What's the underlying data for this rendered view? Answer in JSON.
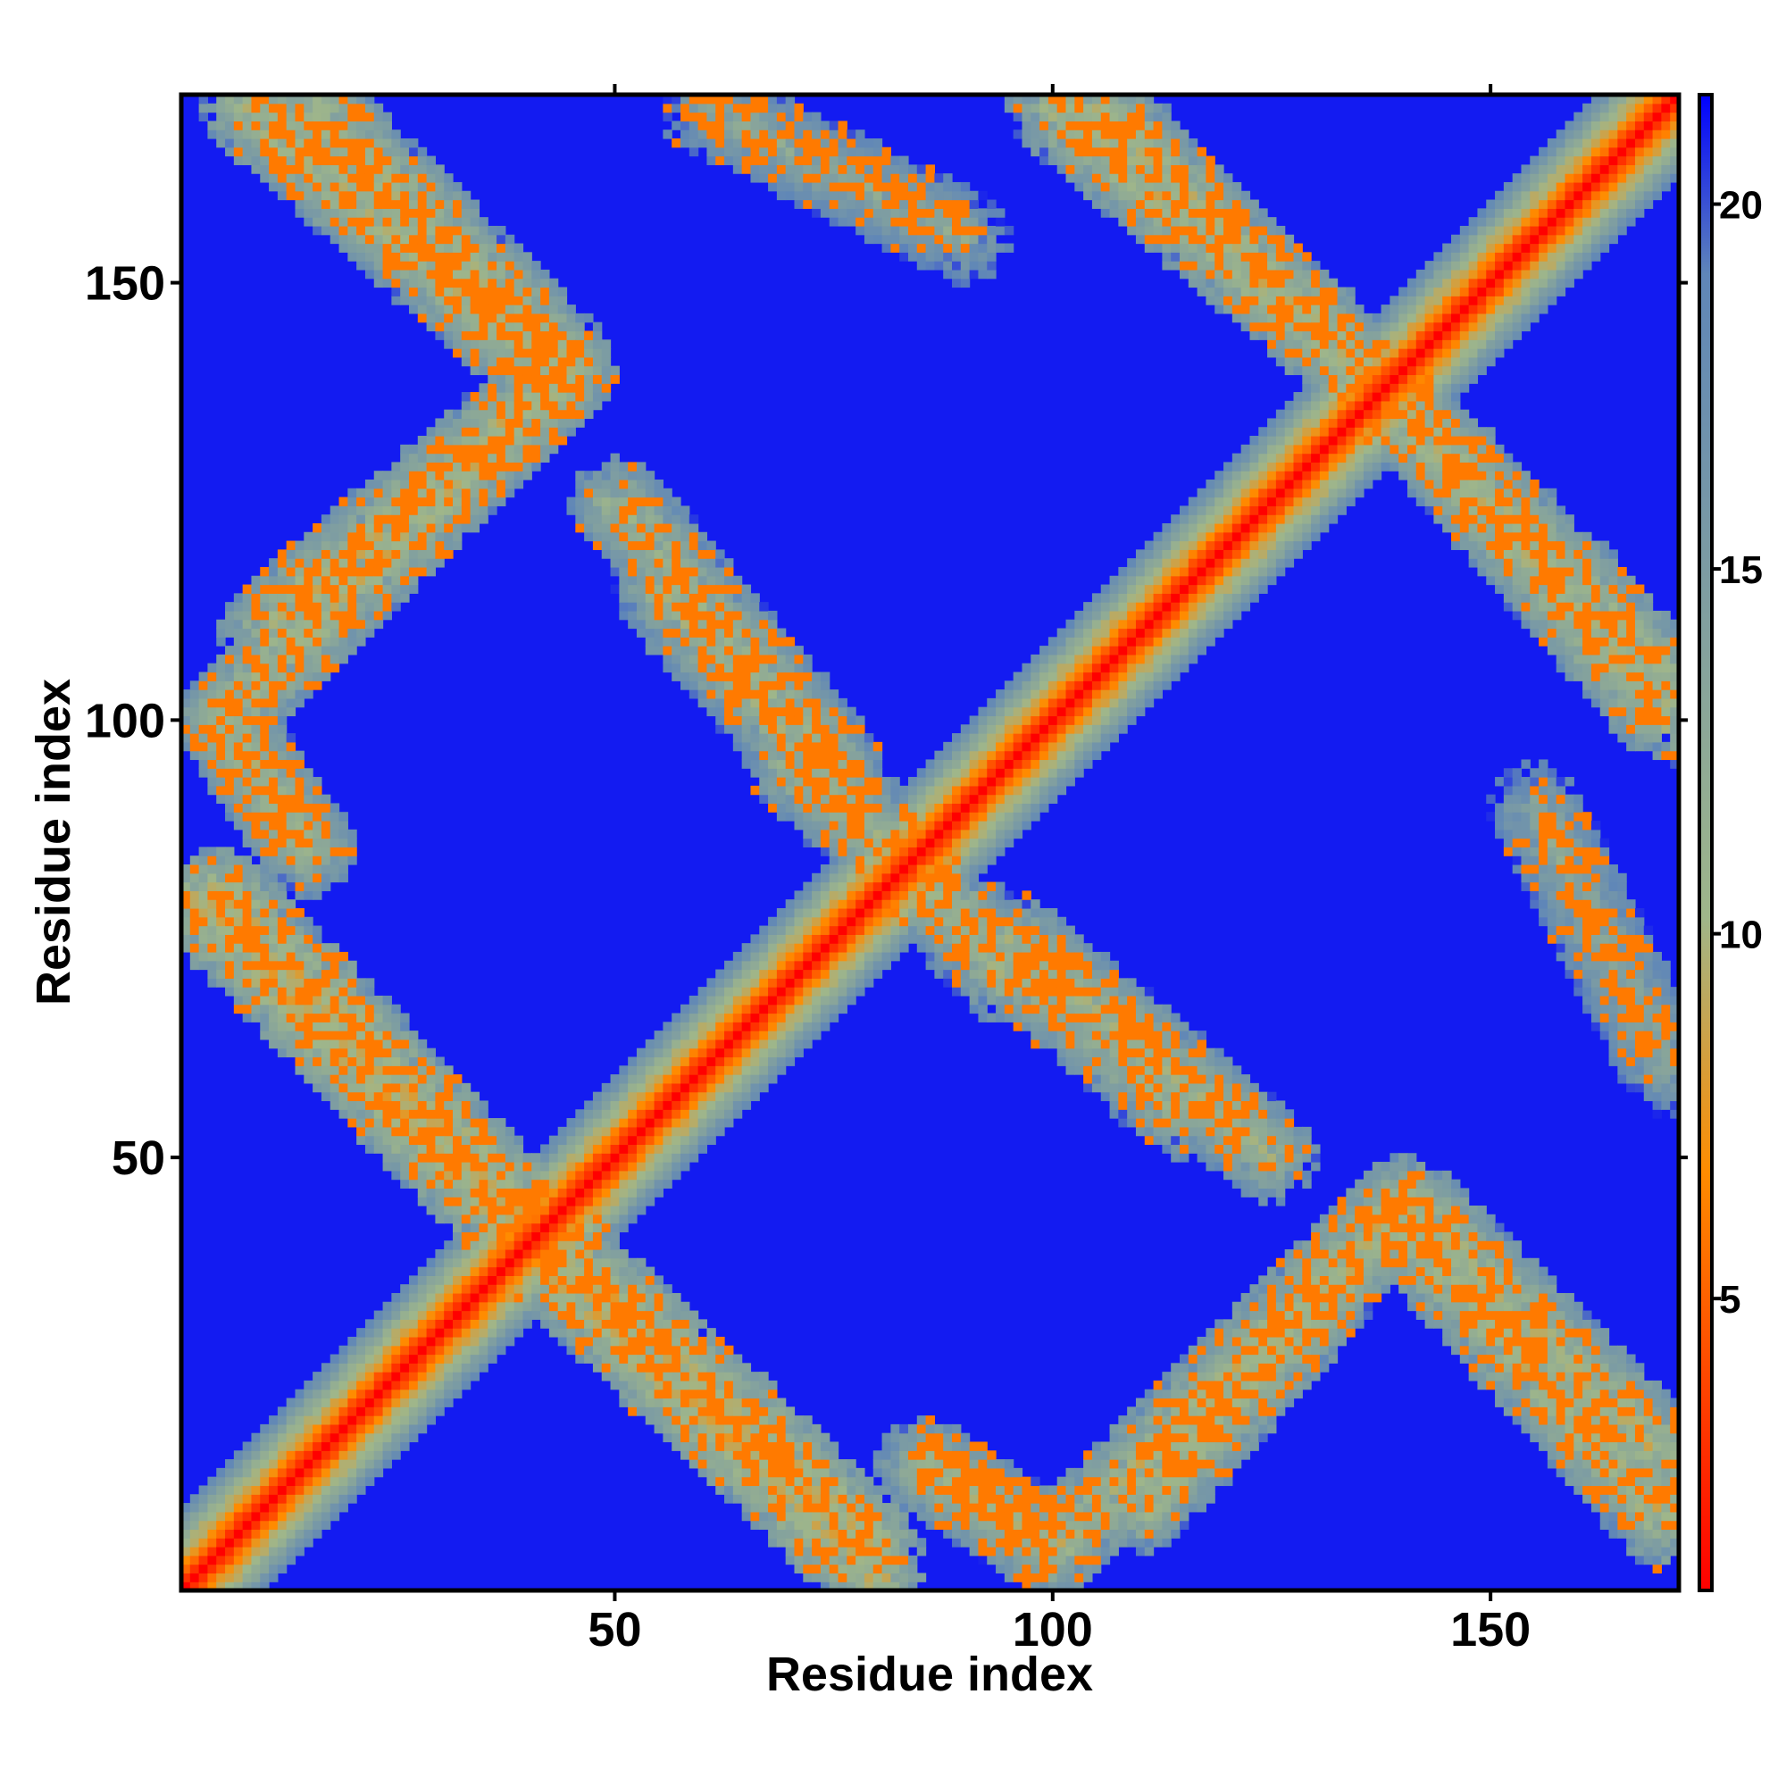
{
  "chart_data": {
    "type": "heatmap",
    "title": "",
    "xlabel": "Residue index",
    "ylabel": "Residue index",
    "xlim": [
      1,
      171
    ],
    "ylim": [
      1,
      171
    ],
    "xticks": [
      50,
      100,
      150
    ],
    "yticks": [
      50,
      100,
      150
    ],
    "colorbar": {
      "range": [
        1,
        21.5
      ],
      "ticks": [
        5,
        10,
        15,
        20
      ],
      "colors": [
        "#ff0000",
        "#ff8c00",
        "#9fb68a",
        "#5f86b8",
        "#0000ff"
      ]
    },
    "background_value": 21,
    "description_of_values": "symmetric residue-residue distance map; low values along the main diagonal, moderate values in off-diagonal contact bands",
    "diagonal_profile": [
      {
        "offset": 0,
        "value": 1
      },
      {
        "offset": 1,
        "value": 3
      },
      {
        "offset": 2,
        "value": 5
      },
      {
        "offset": 3,
        "value": 7
      },
      {
        "offset": 4,
        "value": 9
      },
      {
        "offset": 5,
        "value": 10
      },
      {
        "offset": 6,
        "value": 12
      },
      {
        "offset": 7,
        "value": 14
      },
      {
        "offset": 8,
        "value": 16
      },
      {
        "offset": 9,
        "value": 18
      }
    ],
    "contact_bands": [
      {
        "i_start": 5,
        "i_end": 45,
        "j_start": 80,
        "j_end": 38,
        "value": 10
      },
      {
        "i_start": 40,
        "i_end": 80,
        "j_start": 40,
        "j_end": 2,
        "value": 10
      },
      {
        "i_start": 5,
        "i_end": 45,
        "j_start": 100,
        "j_end": 140,
        "value": 11
      },
      {
        "i_start": 8,
        "i_end": 42,
        "j_start": 170,
        "j_end": 140,
        "value": 11
      },
      {
        "i_start": 50,
        "i_end": 75,
        "j_start": 125,
        "j_end": 95,
        "value": 12
      },
      {
        "i_start": 70,
        "i_end": 115,
        "j_start": 95,
        "j_end": 55,
        "value": 12
      },
      {
        "i_start": 105,
        "i_end": 140,
        "j_start": 170,
        "j_end": 135,
        "value": 11
      },
      {
        "i_start": 140,
        "i_end": 170,
        "j_start": 135,
        "j_end": 100,
        "value": 11
      },
      {
        "i_start": 110,
        "i_end": 140,
        "j_start": 10,
        "j_end": 45,
        "value": 11
      },
      {
        "i_start": 140,
        "i_end": 170,
        "j_start": 45,
        "j_end": 15,
        "value": 11
      },
      {
        "i_start": 85,
        "i_end": 100,
        "j_start": 15,
        "j_end": 5,
        "value": 12
      },
      {
        "i_start": 155,
        "i_end": 170,
        "j_start": 90,
        "j_end": 60,
        "value": 14
      }
    ]
  }
}
